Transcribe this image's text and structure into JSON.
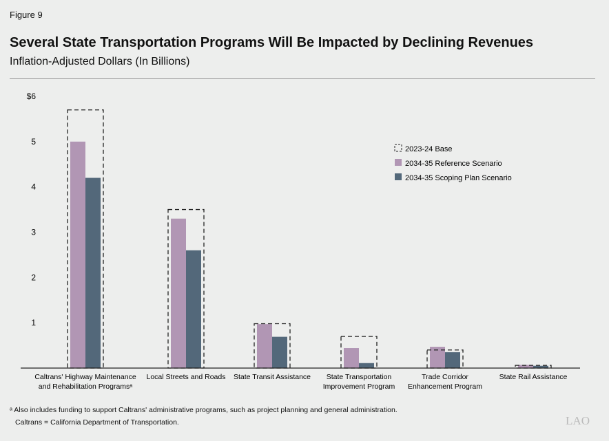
{
  "figure_label": "Figure 9",
  "chart_data": {
    "type": "bar",
    "title": "Several State Transportation Programs Will Be Impacted by Declining Revenues",
    "subtitle": "Inflation-Adjusted Dollars (In Billions)",
    "ylim": [
      0,
      6
    ],
    "yticks": [
      "",
      "1",
      "2",
      "3",
      "4",
      "5",
      "$6"
    ],
    "grid": false,
    "legend_position": "right",
    "categories": [
      [
        "Caltrans' Highway Maintenance",
        "and Rehabilitation Programsᵃ"
      ],
      [
        "Local Streets and Roads"
      ],
      [
        "State Transit Assistance"
      ],
      [
        "State Transportation",
        "Improvement Program"
      ],
      [
        "Trade Corridor",
        "Enhancement Program"
      ],
      [
        "State Rail Assistance"
      ]
    ],
    "series": [
      {
        "name": "2023-24 Base",
        "style": "dashed-outline",
        "color": "#222222",
        "values": [
          5.7,
          3.5,
          0.98,
          0.7,
          0.4,
          0.06
        ]
      },
      {
        "name": "2034-35 Reference Scenario",
        "color": "#b196b4",
        "values": [
          5.0,
          3.3,
          0.97,
          0.44,
          0.47,
          0.07
        ]
      },
      {
        "name": "2034-35 Scoping Plan Scenario",
        "color": "#53687a",
        "values": [
          4.2,
          2.6,
          0.69,
          0.11,
          0.35,
          0.05
        ]
      }
    ]
  },
  "footnotes": [
    "ᵃ Also includes funding to support Caltrans' administrative programs, such as project planning and general administration.",
    "Caltrans = California Department of Transportation."
  ],
  "logo": "LAO"
}
